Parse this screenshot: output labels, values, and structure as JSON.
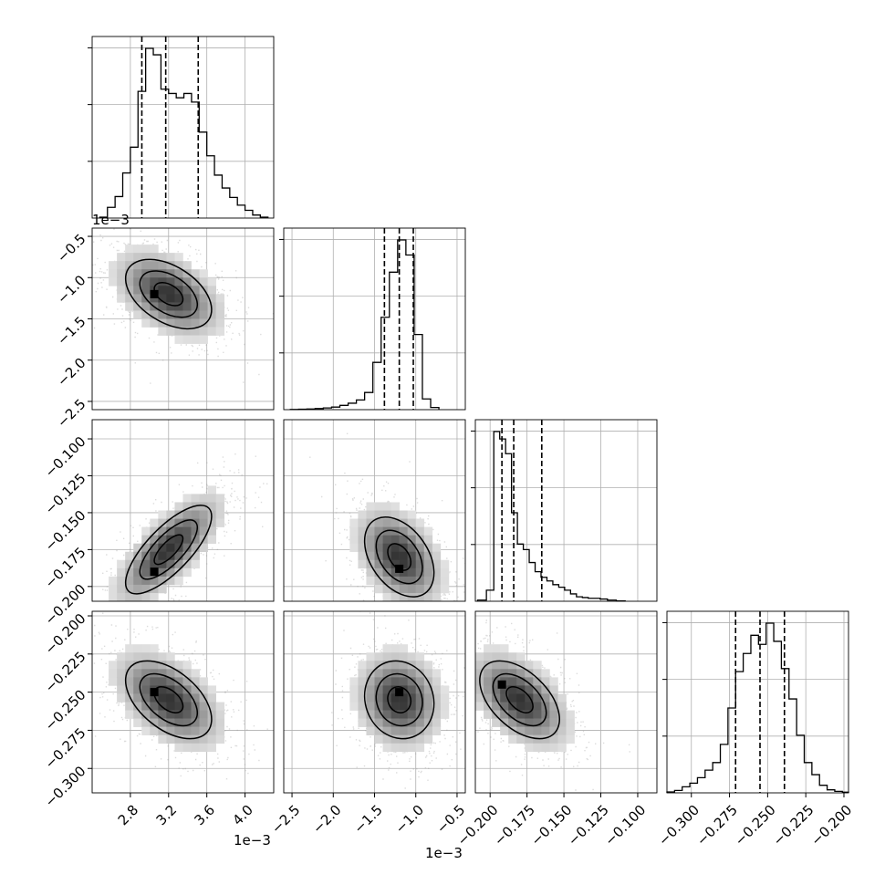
{
  "chart_data": {
    "type": "corner",
    "n_params": 4,
    "grid": true,
    "params": [
      {
        "range": [
          2.4,
          4.3
        ],
        "ticks": [
          2.8,
          3.2,
          3.6,
          4.0
        ],
        "tick_labels": [
          "2.8",
          "3.2",
          "3.6",
          "4.0"
        ],
        "offset_label": "1e−3",
        "quantiles": [
          2.92,
          3.17,
          3.51
        ],
        "hist_bins": [
          2.48,
          2.56,
          2.64,
          2.72,
          2.8,
          2.88,
          2.96,
          3.04,
          3.12,
          3.2,
          3.28,
          3.36,
          3.44,
          3.52,
          3.6,
          3.68,
          3.76,
          3.84,
          3.92,
          4.0,
          4.08,
          4.16,
          4.24
        ],
        "hist_counts": [
          2,
          25,
          50,
          105,
          165,
          295,
          395,
          380,
          300,
          290,
          280,
          290,
          270,
          200,
          145,
          100,
          70,
          48,
          30,
          18,
          7,
          2
        ]
      },
      {
        "range": [
          -2.6,
          -0.4
        ],
        "ticks": [
          -2.5,
          -2.0,
          -1.5,
          -1.0,
          -0.5
        ],
        "tick_labels": [
          "−2.5",
          "−2.0",
          "−1.5",
          "−1.0",
          "−0.5"
        ],
        "offset_label": "1e−3",
        "quantiles": [
          -1.38,
          -1.2,
          -1.03
        ],
        "hist_bins": [
          -2.52,
          -2.42,
          -2.32,
          -2.22,
          -2.12,
          -2.02,
          -1.92,
          -1.82,
          -1.72,
          -1.62,
          -1.52,
          -1.42,
          -1.32,
          -1.22,
          -1.12,
          -1.02,
          -0.92,
          -0.82,
          -0.72
        ],
        "hist_counts": [
          1,
          2,
          3,
          5,
          8,
          12,
          20,
          30,
          45,
          80,
          220,
          430,
          640,
          790,
          720,
          350,
          50,
          10
        ]
      },
      {
        "range": [
          -0.21,
          -0.087
        ],
        "ticks": [
          -0.2,
          -0.175,
          -0.15,
          -0.125,
          -0.1
        ],
        "tick_labels": [
          "−0.200",
          "−0.175",
          "−0.150",
          "−0.125",
          "−0.100"
        ],
        "offset_label": "",
        "quantiles": [
          -0.192,
          -0.184,
          -0.165
        ],
        "hist_bins": [
          -0.2085,
          -0.2025,
          -0.1975,
          -0.1935,
          -0.1895,
          -0.1855,
          -0.1815,
          -0.1775,
          -0.1735,
          -0.1695,
          -0.1655,
          -0.1615,
          -0.1575,
          -0.1535,
          -0.1495,
          -0.1455,
          -0.1415,
          -0.1375,
          -0.1335,
          -0.1295,
          -0.1255,
          -0.1205,
          -0.1145,
          -0.1085
        ],
        "hist_counts": [
          3,
          30,
          460,
          440,
          400,
          240,
          155,
          140,
          105,
          80,
          65,
          55,
          45,
          38,
          30,
          20,
          12,
          10,
          8,
          8,
          6,
          3,
          1
        ]
      },
      {
        "range": [
          -0.316,
          -0.197
        ],
        "ticks": [
          -0.3,
          -0.275,
          -0.25,
          -0.225,
          -0.2
        ],
        "tick_labels": [
          "−0.300",
          "−0.275",
          "−0.250",
          "−0.225",
          "−0.200"
        ],
        "offset_label": "",
        "quantiles": [
          -0.271,
          -0.255,
          -0.239
        ],
        "hist_bins": [
          -0.316,
          -0.311,
          -0.306,
          -0.301,
          -0.296,
          -0.291,
          -0.286,
          -0.281,
          -0.276,
          -0.271,
          -0.266,
          -0.261,
          -0.256,
          -0.251,
          -0.246,
          -0.241,
          -0.236,
          -0.231,
          -0.226,
          -0.221,
          -0.216,
          -0.211,
          -0.206,
          -0.201,
          -0.197
        ],
        "hist_counts": [
          3,
          8,
          20,
          32,
          50,
          75,
          100,
          160,
          280,
          400,
          460,
          520,
          490,
          560,
          500,
          410,
          310,
          190,
          100,
          60,
          25,
          10,
          5,
          2
        ]
      }
    ],
    "pairs": [
      {
        "row": 1,
        "col": 0,
        "center": [
          3.2,
          -1.2
        ],
        "sd": [
          0.3,
          0.28
        ],
        "rho": -0.45,
        "peak": [
          3.05,
          -1.2
        ]
      },
      {
        "row": 2,
        "col": 0,
        "center": [
          3.2,
          -0.175
        ],
        "sd": [
          0.3,
          0.02
        ],
        "rho": 0.75,
        "peak": [
          3.05,
          -0.19
        ]
      },
      {
        "row": 2,
        "col": 1,
        "center": [
          -1.2,
          -0.18
        ],
        "sd": [
          0.28,
          0.018
        ],
        "rho": -0.4,
        "peak": [
          -1.2,
          -0.188
        ]
      },
      {
        "row": 3,
        "col": 0,
        "center": [
          3.2,
          -0.255
        ],
        "sd": [
          0.3,
          0.017
        ],
        "rho": -0.5,
        "peak": [
          3.05,
          -0.25
        ]
      },
      {
        "row": 3,
        "col": 1,
        "center": [
          -1.2,
          -0.255
        ],
        "sd": [
          0.28,
          0.017
        ],
        "rho": -0.1,
        "peak": [
          -1.2,
          -0.25
        ]
      },
      {
        "row": 3,
        "col": 2,
        "center": [
          -0.18,
          -0.255
        ],
        "sd": [
          0.018,
          0.017
        ],
        "rho": -0.5,
        "peak": [
          -0.192,
          -0.245
        ]
      }
    ]
  }
}
